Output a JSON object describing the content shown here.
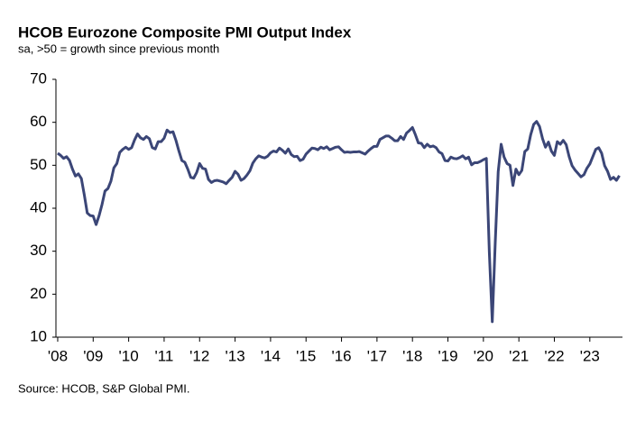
{
  "chart_data": {
    "type": "line",
    "title": "HCOB Eurozone Composite PMI Output Index",
    "subtitle": "sa, >50 = growth  since previous  month",
    "source": "Source: HCOB, S&P Global PMI.",
    "color": "#3b4677",
    "xlim": [
      2007.95,
      2023.92
    ],
    "ylim": [
      10,
      70
    ],
    "yticks": [
      10,
      20,
      30,
      40,
      50,
      60,
      70
    ],
    "xticks": [
      {
        "value": 2008,
        "label": "'08"
      },
      {
        "value": 2009,
        "label": "'09"
      },
      {
        "value": 2010,
        "label": "'10"
      },
      {
        "value": 2011,
        "label": "'11"
      },
      {
        "value": 2012,
        "label": "'12"
      },
      {
        "value": 2013,
        "label": "'13"
      },
      {
        "value": 2014,
        "label": "'14"
      },
      {
        "value": 2015,
        "label": "'15"
      },
      {
        "value": 2016,
        "label": "'16"
      },
      {
        "value": 2017,
        "label": "'17"
      },
      {
        "value": 2018,
        "label": "'18"
      },
      {
        "value": 2019,
        "label": "'19"
      },
      {
        "value": 2020,
        "label": "'20"
      },
      {
        "value": 2021,
        "label": "'21"
      },
      {
        "value": 2022,
        "label": "'22"
      },
      {
        "value": 2023,
        "label": "'23"
      }
    ],
    "x": [
      2008,
      2008.083,
      2008.167,
      2008.25,
      2008.333,
      2008.417,
      2008.5,
      2008.583,
      2008.667,
      2008.75,
      2008.833,
      2008.917,
      2009,
      2009.083,
      2009.167,
      2009.25,
      2009.333,
      2009.417,
      2009.5,
      2009.583,
      2009.667,
      2009.75,
      2009.833,
      2009.917,
      2010,
      2010.083,
      2010.167,
      2010.25,
      2010.333,
      2010.417,
      2010.5,
      2010.583,
      2010.667,
      2010.75,
      2010.833,
      2010.917,
      2011,
      2011.083,
      2011.167,
      2011.25,
      2011.333,
      2011.417,
      2011.5,
      2011.583,
      2011.667,
      2011.75,
      2011.833,
      2011.917,
      2012,
      2012.083,
      2012.167,
      2012.25,
      2012.333,
      2012.417,
      2012.5,
      2012.583,
      2012.667,
      2012.75,
      2012.833,
      2012.917,
      2013,
      2013.083,
      2013.167,
      2013.25,
      2013.333,
      2013.417,
      2013.5,
      2013.583,
      2013.667,
      2013.75,
      2013.833,
      2013.917,
      2014,
      2014.083,
      2014.167,
      2014.25,
      2014.333,
      2014.417,
      2014.5,
      2014.583,
      2014.667,
      2014.75,
      2014.833,
      2014.917,
      2015,
      2015.083,
      2015.167,
      2015.25,
      2015.333,
      2015.417,
      2015.5,
      2015.583,
      2015.667,
      2015.75,
      2015.833,
      2015.917,
      2016,
      2016.083,
      2016.167,
      2016.25,
      2016.333,
      2016.417,
      2016.5,
      2016.583,
      2016.667,
      2016.75,
      2016.833,
      2016.917,
      2017,
      2017.083,
      2017.167,
      2017.25,
      2017.333,
      2017.417,
      2017.5,
      2017.583,
      2017.667,
      2017.75,
      2017.833,
      2017.917,
      2018,
      2018.083,
      2018.167,
      2018.25,
      2018.333,
      2018.417,
      2018.5,
      2018.583,
      2018.667,
      2018.75,
      2018.833,
      2018.917,
      2019,
      2019.083,
      2019.167,
      2019.25,
      2019.333,
      2019.417,
      2019.5,
      2019.583,
      2019.667,
      2019.75,
      2019.833,
      2019.917,
      2020,
      2020.083,
      2020.167,
      2020.25,
      2020.333,
      2020.417,
      2020.5,
      2020.583,
      2020.667,
      2020.75,
      2020.833,
      2020.917,
      2021,
      2021.083,
      2021.167,
      2021.25,
      2021.333,
      2021.417,
      2021.5,
      2021.583,
      2021.667,
      2021.75,
      2021.833,
      2021.917,
      2022,
      2022.083,
      2022.167,
      2022.25,
      2022.333,
      2022.417,
      2022.5,
      2022.583,
      2022.667,
      2022.75,
      2022.833,
      2022.917,
      2023,
      2023.083,
      2023.167,
      2023.25,
      2023.333,
      2023.417,
      2023.5,
      2023.583,
      2023.667,
      2023.75,
      2023.833
    ],
    "values": [
      52.8,
      52.3,
      51.6,
      52.0,
      51.1,
      49.1,
      47.5,
      48.0,
      46.9,
      43.1,
      38.9,
      38.3,
      38.2,
      36.2,
      38.3,
      40.9,
      44.0,
      44.6,
      46.3,
      49.4,
      50.4,
      53.0,
      53.7,
      54.2,
      53.7,
      54.1,
      55.9,
      57.3,
      56.4,
      56.0,
      56.7,
      56.2,
      54.1,
      53.8,
      55.5,
      55.5,
      56.3,
      58.2,
      57.6,
      57.8,
      55.8,
      53.3,
      51.1,
      50.7,
      49.1,
      47.2,
      47.0,
      48.3,
      50.4,
      49.3,
      49.1,
      46.7,
      46.0,
      46.4,
      46.5,
      46.3,
      46.1,
      45.7,
      46.5,
      47.2,
      48.6,
      47.9,
      46.5,
      46.9,
      47.7,
      48.7,
      50.5,
      51.5,
      52.2,
      51.9,
      51.7,
      52.1,
      52.9,
      53.3,
      53.1,
      54.0,
      53.5,
      52.8,
      53.8,
      52.5,
      52.0,
      52.1,
      51.1,
      51.4,
      52.6,
      53.3,
      54.0,
      53.9,
      53.6,
      54.2,
      53.9,
      54.3,
      53.6,
      53.9,
      54.2,
      54.3,
      53.6,
      53.0,
      53.1,
      53.0,
      53.1,
      53.1,
      53.2,
      52.9,
      52.6,
      53.3,
      53.9,
      54.4,
      54.4,
      56.0,
      56.4,
      56.8,
      56.8,
      56.3,
      55.7,
      55.7,
      56.7,
      56.0,
      57.5,
      58.1,
      58.8,
      57.1,
      55.2,
      55.1,
      54.1,
      54.9,
      54.3,
      54.5,
      54.1,
      53.1,
      52.7,
      51.1,
      51.0,
      51.9,
      51.6,
      51.5,
      51.8,
      52.2,
      51.5,
      51.9,
      50.1,
      50.6,
      50.6,
      50.9,
      51.3,
      51.6,
      29.7,
      13.6,
      31.9,
      48.5,
      54.9,
      51.9,
      50.4,
      50.0,
      45.3,
      49.1,
      47.8,
      48.8,
      53.2,
      53.8,
      57.1,
      59.5,
      60.2,
      59.0,
      56.2,
      54.2,
      55.4,
      53.3,
      52.3,
      55.5,
      54.9,
      55.8,
      54.8,
      52.0,
      49.9,
      48.9,
      48.1,
      47.3,
      47.8,
      49.3,
      50.3,
      52.0,
      53.7,
      54.1,
      52.8,
      49.9,
      48.6,
      46.7,
      47.2,
      46.5,
      47.6
    ]
  }
}
